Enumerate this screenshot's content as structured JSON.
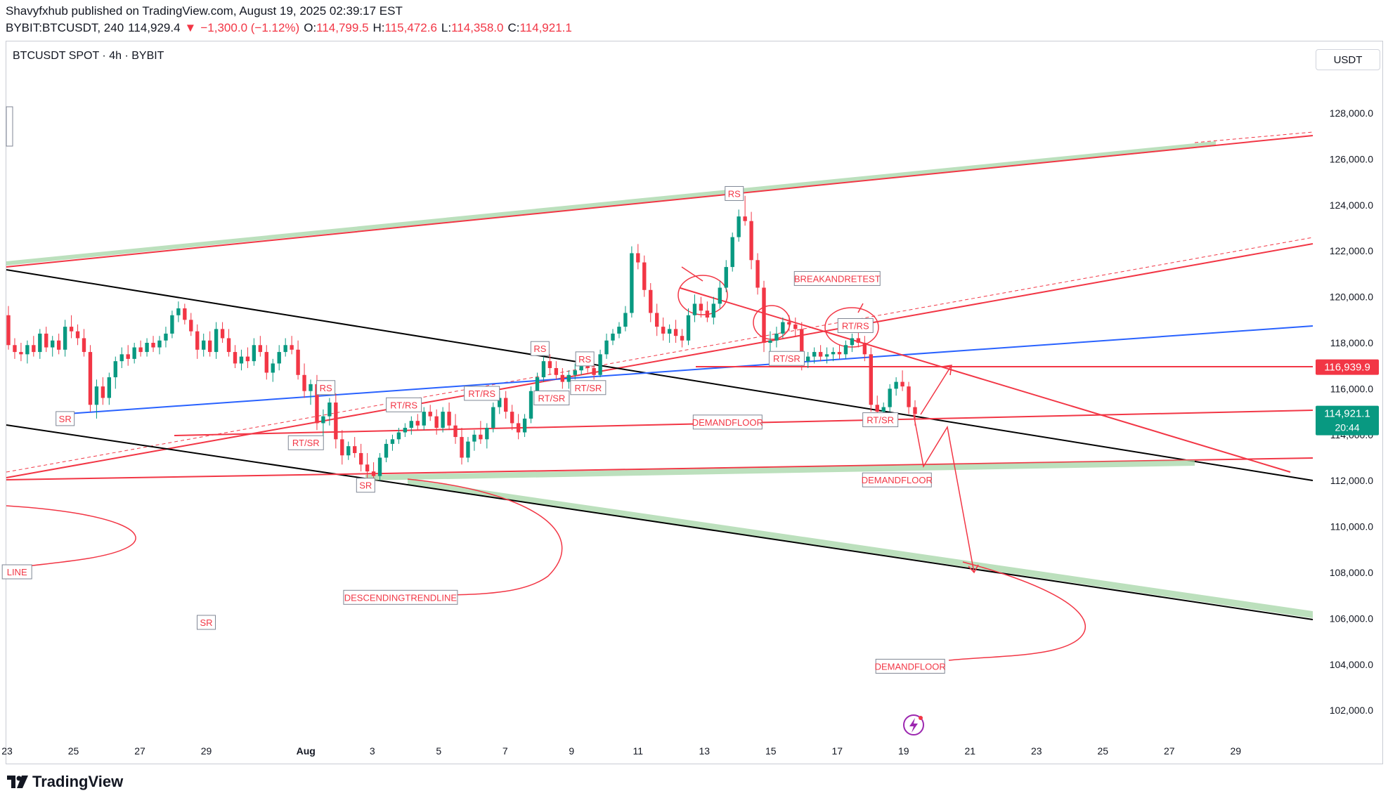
{
  "header": {
    "published": "Shavyfxhub published on TradingView.com, August 19, 2025 02:39:17 EST",
    "symbol_line": "BYBIT:BTCUSDT, 240",
    "last": "114,929.4",
    "change": "−1,300.0 (−1.12%)",
    "o_label": "O:",
    "o": "114,799.5",
    "h_label": "H:",
    "h": "115,472.6",
    "l_label": "L:",
    "l": "114,358.0",
    "c_label": "C:",
    "c": "114,921.1"
  },
  "panel": {
    "symbol_title": "BTCUSDT SPOT · 4h · BYBIT",
    "currency_button": "USDT",
    "logo": "TradingView"
  },
  "colors": {
    "up": "#089981",
    "down": "#f23645",
    "trend_red": "#f23645",
    "trend_black": "#000000",
    "trend_blue": "#2962ff",
    "zone_green": "#a5d6a7"
  },
  "chart_data": {
    "type": "candlestick",
    "interval": "4h",
    "ylim": [
      100500,
      130500
    ],
    "y_ticks": [
      "102,000.0",
      "104,000.0",
      "106,000.0",
      "108,000.0",
      "110,000.0",
      "112,000.0",
      "114,000.0",
      "116,000.0",
      "118,000.0",
      "120,000.0",
      "122,000.0",
      "124,000.0",
      "126,000.0",
      "128,000.0"
    ],
    "y_tick_values": [
      102000,
      104000,
      106000,
      108000,
      110000,
      112000,
      114000,
      116000,
      118000,
      120000,
      122000,
      124000,
      126000,
      128000
    ],
    "x_ticks": [
      "23",
      "25",
      "27",
      "29",
      "Aug",
      "3",
      "5",
      "7",
      "9",
      "11",
      "13",
      "15",
      "17",
      "19",
      "21",
      "23",
      "25",
      "27",
      "29"
    ],
    "x_tick_days": [
      -8,
      -6,
      -4,
      -2,
      1,
      3,
      5,
      7,
      9,
      11,
      13,
      15,
      17,
      19,
      21,
      23,
      25,
      27,
      29
    ],
    "xlim_days": [
      -8.05,
      31.2
    ],
    "price_tags": [
      {
        "value": 116939.9,
        "label": "116,939.9",
        "color": "#f23645"
      },
      {
        "value": 114921.1,
        "label": "114,921.1",
        "sub": "20:44",
        "color": "#089981"
      }
    ],
    "annotations": [
      {
        "text": "RS",
        "day": 13.9,
        "price": 124500
      },
      {
        "text": "BREAKANDRETEST",
        "day": 17.0,
        "price": 120800
      },
      {
        "text": "RT/RS",
        "day": 17.55,
        "price": 118750
      },
      {
        "text": "RT/SR",
        "day": 15.48,
        "price": 117320
      },
      {
        "text": "RS",
        "day": 8.05,
        "price": 117750
      },
      {
        "text": "RS",
        "day": 9.4,
        "price": 117300
      },
      {
        "text": "RT/SR",
        "day": 9.5,
        "price": 116050
      },
      {
        "text": "RT/SR",
        "day": 8.4,
        "price": 115600
      },
      {
        "text": "RT/RS",
        "day": 6.3,
        "price": 115800
      },
      {
        "text": "RT/RS",
        "day": 3.95,
        "price": 115300
      },
      {
        "text": "RS",
        "day": 1.6,
        "price": 116050
      },
      {
        "text": "RT/SR",
        "day": 1.0,
        "price": 113650
      },
      {
        "text": "SR",
        "day": -6.25,
        "price": 114700
      },
      {
        "text": "SR",
        "day": 2.8,
        "price": 111800
      },
      {
        "text": "DEMANDFLOOR",
        "day": 13.7,
        "price": 114550
      },
      {
        "text": "RT/SR",
        "day": 18.3,
        "price": 114650
      },
      {
        "text": "DEMANDFLOOR",
        "day": 18.8,
        "price": 112030
      },
      {
        "text": "DESCENDINGTRENDLINE",
        "day": 3.85,
        "price": 106920
      },
      {
        "text": "SR",
        "day": -2.0,
        "price": 105830
      },
      {
        "text": "DEMANDFLOOR",
        "day": 19.2,
        "price": 103920
      },
      {
        "text": "LINE",
        "day": -7.7,
        "price": 108030
      }
    ],
    "candles": [
      {
        "o": 119200,
        "h": 119600,
        "l": 117700,
        "c": 117900
      },
      {
        "o": 117900,
        "h": 118200,
        "l": 117300,
        "c": 117600
      },
      {
        "o": 117600,
        "h": 118000,
        "l": 117200,
        "c": 117500
      },
      {
        "o": 117500,
        "h": 118100,
        "l": 117100,
        "c": 117900
      },
      {
        "o": 117900,
        "h": 118300,
        "l": 117400,
        "c": 117600
      },
      {
        "o": 117600,
        "h": 118600,
        "l": 117300,
        "c": 118400
      },
      {
        "o": 118400,
        "h": 118700,
        "l": 117600,
        "c": 117800
      },
      {
        "o": 117800,
        "h": 118300,
        "l": 117400,
        "c": 118100
      },
      {
        "o": 118100,
        "h": 118400,
        "l": 117500,
        "c": 117700
      },
      {
        "o": 117700,
        "h": 119000,
        "l": 117400,
        "c": 118700
      },
      {
        "o": 118700,
        "h": 119200,
        "l": 118200,
        "c": 118500
      },
      {
        "o": 118500,
        "h": 118800,
        "l": 117900,
        "c": 118200
      },
      {
        "o": 118200,
        "h": 118600,
        "l": 117400,
        "c": 117600
      },
      {
        "o": 117600,
        "h": 117900,
        "l": 115000,
        "c": 115300
      },
      {
        "o": 115300,
        "h": 116400,
        "l": 114700,
        "c": 116100
      },
      {
        "o": 116100,
        "h": 116500,
        "l": 115300,
        "c": 115600
      },
      {
        "o": 115600,
        "h": 116700,
        "l": 115300,
        "c": 116500
      },
      {
        "o": 116500,
        "h": 117400,
        "l": 116000,
        "c": 117200
      },
      {
        "o": 117200,
        "h": 117800,
        "l": 116900,
        "c": 117500
      },
      {
        "o": 117500,
        "h": 117900,
        "l": 117000,
        "c": 117300
      },
      {
        "o": 117300,
        "h": 118000,
        "l": 117100,
        "c": 117800
      },
      {
        "o": 117800,
        "h": 118100,
        "l": 117400,
        "c": 117600
      },
      {
        "o": 117600,
        "h": 118200,
        "l": 117400,
        "c": 118000
      },
      {
        "o": 118000,
        "h": 118300,
        "l": 117600,
        "c": 117800
      },
      {
        "o": 117800,
        "h": 118300,
        "l": 117500,
        "c": 118100
      },
      {
        "o": 118100,
        "h": 118700,
        "l": 117800,
        "c": 118400
      },
      {
        "o": 118400,
        "h": 119400,
        "l": 118200,
        "c": 119200
      },
      {
        "o": 119200,
        "h": 119800,
        "l": 118900,
        "c": 119500
      },
      {
        "o": 119500,
        "h": 119700,
        "l": 118800,
        "c": 119000
      },
      {
        "o": 119000,
        "h": 119300,
        "l": 118300,
        "c": 118500
      },
      {
        "o": 118500,
        "h": 118800,
        "l": 117300,
        "c": 117700
      },
      {
        "o": 117700,
        "h": 118400,
        "l": 117400,
        "c": 118100
      },
      {
        "o": 118100,
        "h": 118500,
        "l": 117400,
        "c": 117600
      },
      {
        "o": 117600,
        "h": 118900,
        "l": 117300,
        "c": 118600
      },
      {
        "o": 118600,
        "h": 118900,
        "l": 118000,
        "c": 118200
      },
      {
        "o": 118200,
        "h": 118600,
        "l": 117400,
        "c": 117600
      },
      {
        "o": 117600,
        "h": 117900,
        "l": 116900,
        "c": 117100
      },
      {
        "o": 117100,
        "h": 117700,
        "l": 116800,
        "c": 117400
      },
      {
        "o": 117400,
        "h": 117800,
        "l": 116900,
        "c": 117200
      },
      {
        "o": 117200,
        "h": 118200,
        "l": 117000,
        "c": 117900
      },
      {
        "o": 117900,
        "h": 118300,
        "l": 117400,
        "c": 117600
      },
      {
        "o": 117600,
        "h": 117900,
        "l": 116400,
        "c": 116700
      },
      {
        "o": 116700,
        "h": 117300,
        "l": 116300,
        "c": 117100
      },
      {
        "o": 117100,
        "h": 117900,
        "l": 116800,
        "c": 117600
      },
      {
        "o": 117600,
        "h": 118200,
        "l": 117400,
        "c": 117900
      },
      {
        "o": 117900,
        "h": 118300,
        "l": 117500,
        "c": 117700
      },
      {
        "o": 117700,
        "h": 118100,
        "l": 116400,
        "c": 116600
      },
      {
        "o": 116600,
        "h": 117100,
        "l": 115600,
        "c": 115900
      },
      {
        "o": 115900,
        "h": 116400,
        "l": 115300,
        "c": 116200
      },
      {
        "o": 116200,
        "h": 116600,
        "l": 114200,
        "c": 114500
      },
      {
        "o": 114500,
        "h": 115100,
        "l": 113600,
        "c": 114800
      },
      {
        "o": 114800,
        "h": 115600,
        "l": 114400,
        "c": 115400
      },
      {
        "o": 115400,
        "h": 115800,
        "l": 113400,
        "c": 113800
      },
      {
        "o": 113800,
        "h": 114200,
        "l": 112700,
        "c": 113100
      },
      {
        "o": 113100,
        "h": 113700,
        "l": 112900,
        "c": 113500
      },
      {
        "o": 113500,
        "h": 113900,
        "l": 113000,
        "c": 113200
      },
      {
        "o": 113200,
        "h": 113600,
        "l": 112400,
        "c": 112700
      },
      {
        "o": 112700,
        "h": 113200,
        "l": 112100,
        "c": 112400
      },
      {
        "o": 112400,
        "h": 112800,
        "l": 111900,
        "c": 112200
      },
      {
        "o": 112200,
        "h": 113200,
        "l": 112000,
        "c": 113000
      },
      {
        "o": 113000,
        "h": 113800,
        "l": 112800,
        "c": 113600
      },
      {
        "o": 113600,
        "h": 114000,
        "l": 113300,
        "c": 113800
      },
      {
        "o": 113800,
        "h": 114300,
        "l": 113600,
        "c": 114100
      },
      {
        "o": 114100,
        "h": 114500,
        "l": 113900,
        "c": 114300
      },
      {
        "o": 114300,
        "h": 114800,
        "l": 114000,
        "c": 114600
      },
      {
        "o": 114600,
        "h": 114900,
        "l": 114200,
        "c": 114400
      },
      {
        "o": 114400,
        "h": 115200,
        "l": 114200,
        "c": 115000
      },
      {
        "o": 115000,
        "h": 115300,
        "l": 114600,
        "c": 114800
      },
      {
        "o": 114800,
        "h": 115100,
        "l": 114000,
        "c": 114300
      },
      {
        "o": 114300,
        "h": 115200,
        "l": 114100,
        "c": 115000
      },
      {
        "o": 115000,
        "h": 115400,
        "l": 114200,
        "c": 114400
      },
      {
        "o": 114400,
        "h": 114900,
        "l": 113600,
        "c": 113900
      },
      {
        "o": 113900,
        "h": 114300,
        "l": 112700,
        "c": 113000
      },
      {
        "o": 113000,
        "h": 113900,
        "l": 112800,
        "c": 113700
      },
      {
        "o": 113700,
        "h": 114200,
        "l": 113300,
        "c": 114000
      },
      {
        "o": 114000,
        "h": 114600,
        "l": 113600,
        "c": 113800
      },
      {
        "o": 113800,
        "h": 114500,
        "l": 113400,
        "c": 114300
      },
      {
        "o": 114300,
        "h": 115400,
        "l": 114100,
        "c": 115200
      },
      {
        "o": 115200,
        "h": 115900,
        "l": 114900,
        "c": 115600
      },
      {
        "o": 115600,
        "h": 115900,
        "l": 114700,
        "c": 115000
      },
      {
        "o": 115000,
        "h": 115300,
        "l": 114200,
        "c": 114500
      },
      {
        "o": 114500,
        "h": 114900,
        "l": 113800,
        "c": 114100
      },
      {
        "o": 114100,
        "h": 114900,
        "l": 113900,
        "c": 114700
      },
      {
        "o": 114700,
        "h": 116100,
        "l": 114500,
        "c": 115900
      },
      {
        "o": 115900,
        "h": 116700,
        "l": 115700,
        "c": 116500
      },
      {
        "o": 116500,
        "h": 117400,
        "l": 116300,
        "c": 117200
      },
      {
        "o": 117200,
        "h": 117500,
        "l": 116600,
        "c": 116900
      },
      {
        "o": 116900,
        "h": 117200,
        "l": 116400,
        "c": 116600
      },
      {
        "o": 116600,
        "h": 116900,
        "l": 116000,
        "c": 116300
      },
      {
        "o": 116300,
        "h": 116800,
        "l": 116000,
        "c": 116600
      },
      {
        "o": 116600,
        "h": 117100,
        "l": 116400,
        "c": 116800
      },
      {
        "o": 116800,
        "h": 117400,
        "l": 116600,
        "c": 117100
      },
      {
        "o": 117100,
        "h": 117300,
        "l": 116700,
        "c": 116900
      },
      {
        "o": 116900,
        "h": 117200,
        "l": 116400,
        "c": 116600
      },
      {
        "o": 116600,
        "h": 117700,
        "l": 116500,
        "c": 117500
      },
      {
        "o": 117500,
        "h": 118400,
        "l": 117300,
        "c": 118100
      },
      {
        "o": 118100,
        "h": 118600,
        "l": 117900,
        "c": 118400
      },
      {
        "o": 118400,
        "h": 118900,
        "l": 118200,
        "c": 118700
      },
      {
        "o": 118700,
        "h": 119600,
        "l": 118500,
        "c": 119300
      },
      {
        "o": 119300,
        "h": 122200,
        "l": 119100,
        "c": 121900
      },
      {
        "o": 121900,
        "h": 122300,
        "l": 121200,
        "c": 121500
      },
      {
        "o": 121500,
        "h": 121800,
        "l": 120000,
        "c": 120300
      },
      {
        "o": 120300,
        "h": 120600,
        "l": 118900,
        "c": 119300
      },
      {
        "o": 119300,
        "h": 119700,
        "l": 118300,
        "c": 118700
      },
      {
        "o": 118700,
        "h": 119100,
        "l": 118100,
        "c": 118400
      },
      {
        "o": 118400,
        "h": 118800,
        "l": 118000,
        "c": 118600
      },
      {
        "o": 118600,
        "h": 119000,
        "l": 118000,
        "c": 118300
      },
      {
        "o": 118300,
        "h": 118600,
        "l": 117800,
        "c": 118100
      },
      {
        "o": 118100,
        "h": 119500,
        "l": 117900,
        "c": 119200
      },
      {
        "o": 119200,
        "h": 120100,
        "l": 118900,
        "c": 119700
      },
      {
        "o": 119700,
        "h": 120000,
        "l": 119100,
        "c": 119400
      },
      {
        "o": 119400,
        "h": 119800,
        "l": 118900,
        "c": 119100
      },
      {
        "o": 119100,
        "h": 120000,
        "l": 118800,
        "c": 119700
      },
      {
        "o": 119700,
        "h": 120700,
        "l": 119500,
        "c": 120400
      },
      {
        "o": 120400,
        "h": 121600,
        "l": 120200,
        "c": 121300
      },
      {
        "o": 121300,
        "h": 122800,
        "l": 121100,
        "c": 122600
      },
      {
        "o": 122600,
        "h": 123800,
        "l": 122400,
        "c": 123500
      },
      {
        "o": 123500,
        "h": 124400,
        "l": 123100,
        "c": 123300
      },
      {
        "o": 123300,
        "h": 123700,
        "l": 121200,
        "c": 121600
      },
      {
        "o": 121600,
        "h": 121900,
        "l": 120100,
        "c": 120400
      },
      {
        "o": 120400,
        "h": 120700,
        "l": 117600,
        "c": 118000
      },
      {
        "o": 118000,
        "h": 118500,
        "l": 117500,
        "c": 118100
      },
      {
        "o": 118100,
        "h": 118700,
        "l": 117800,
        "c": 118400
      },
      {
        "o": 118400,
        "h": 119100,
        "l": 118200,
        "c": 118900
      },
      {
        "o": 118900,
        "h": 119200,
        "l": 118500,
        "c": 118800
      },
      {
        "o": 118800,
        "h": 119100,
        "l": 118300,
        "c": 118600
      },
      {
        "o": 118600,
        "h": 118900,
        "l": 116800,
        "c": 117200
      },
      {
        "o": 117200,
        "h": 117600,
        "l": 116900,
        "c": 117400
      },
      {
        "o": 117400,
        "h": 117800,
        "l": 117100,
        "c": 117600
      },
      {
        "o": 117600,
        "h": 117900,
        "l": 117200,
        "c": 117400
      },
      {
        "o": 117400,
        "h": 117800,
        "l": 117100,
        "c": 117500
      },
      {
        "o": 117500,
        "h": 117800,
        "l": 117200,
        "c": 117600
      },
      {
        "o": 117600,
        "h": 117900,
        "l": 117300,
        "c": 117500
      },
      {
        "o": 117500,
        "h": 118100,
        "l": 117300,
        "c": 117900
      },
      {
        "o": 117900,
        "h": 118400,
        "l": 117600,
        "c": 118200
      },
      {
        "o": 118200,
        "h": 118500,
        "l": 117800,
        "c": 118000
      },
      {
        "o": 118000,
        "h": 118300,
        "l": 117200,
        "c": 117500
      },
      {
        "o": 117500,
        "h": 117800,
        "l": 115000,
        "c": 115300
      },
      {
        "o": 115300,
        "h": 115700,
        "l": 114800,
        "c": 115000
      },
      {
        "o": 115000,
        "h": 115400,
        "l": 114700,
        "c": 115200
      },
      {
        "o": 115200,
        "h": 116200,
        "l": 115000,
        "c": 116000
      },
      {
        "o": 116000,
        "h": 116500,
        "l": 115700,
        "c": 116300
      },
      {
        "o": 116300,
        "h": 116800,
        "l": 115900,
        "c": 116100
      },
      {
        "o": 116100,
        "h": 116300,
        "l": 114900,
        "c": 115200
      },
      {
        "o": 115200,
        "h": 115500,
        "l": 114400,
        "c": 114900
      }
    ]
  }
}
